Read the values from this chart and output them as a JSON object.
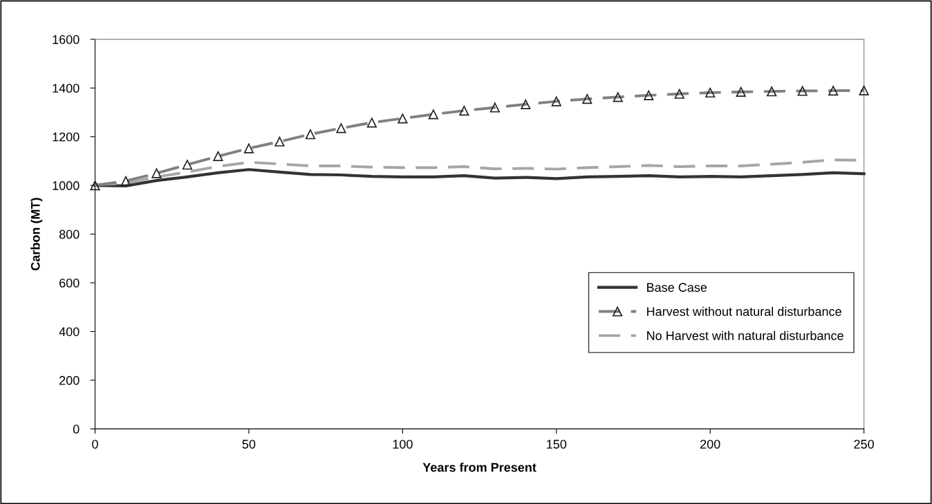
{
  "chart_data": {
    "type": "line",
    "xlabel": "Years from Present",
    "ylabel": "Carbon (MT)",
    "x": [
      0,
      10,
      20,
      30,
      40,
      50,
      60,
      70,
      80,
      90,
      100,
      110,
      120,
      130,
      140,
      150,
      160,
      170,
      180,
      190,
      200,
      210,
      220,
      230,
      240,
      250
    ],
    "series": [
      {
        "name": "Base Case",
        "color": "#333333",
        "line_style": "solid",
        "marker": "none",
        "values": [
          1000,
          998,
          1020,
          1035,
          1052,
          1065,
          1055,
          1045,
          1043,
          1037,
          1035,
          1035,
          1040,
          1030,
          1033,
          1028,
          1035,
          1037,
          1040,
          1035,
          1037,
          1035,
          1040,
          1045,
          1052,
          1048
        ]
      },
      {
        "name": "Harvest without natural disturbance",
        "color": "#808080",
        "line_style": "dashed",
        "marker": "triangle",
        "values": [
          1000,
          1018,
          1050,
          1085,
          1120,
          1152,
          1180,
          1210,
          1235,
          1258,
          1275,
          1292,
          1307,
          1320,
          1333,
          1345,
          1355,
          1363,
          1370,
          1376,
          1381,
          1384,
          1386,
          1388,
          1389,
          1390
        ]
      },
      {
        "name": "No Harvest with natural disturbance",
        "color": "#a6a6a6",
        "line_style": "dashed",
        "marker": "none",
        "values": [
          1003,
          1008,
          1035,
          1055,
          1078,
          1095,
          1088,
          1080,
          1080,
          1075,
          1073,
          1073,
          1077,
          1068,
          1070,
          1067,
          1073,
          1077,
          1082,
          1077,
          1080,
          1080,
          1087,
          1095,
          1105,
          1103
        ]
      }
    ],
    "xlim": [
      0,
      250
    ],
    "xticks": [
      0,
      50,
      100,
      150,
      200,
      250
    ],
    "ylim": [
      0,
      1600
    ],
    "yticks": [
      0,
      200,
      400,
      600,
      800,
      1000,
      1200,
      1400,
      1600
    ],
    "grid": false,
    "legend": "bottom right"
  }
}
